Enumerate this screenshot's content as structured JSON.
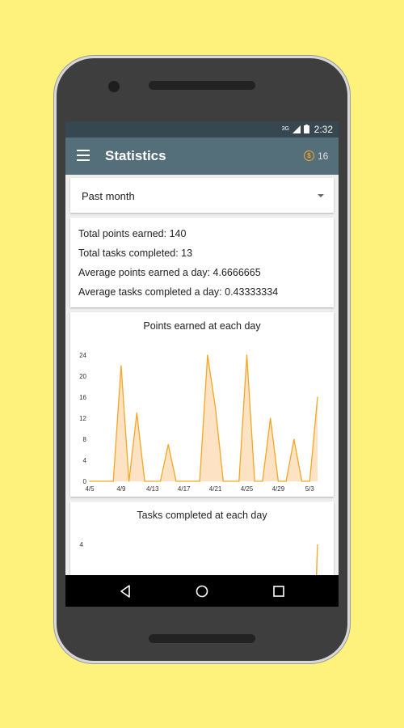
{
  "status_bar": {
    "network": "3G",
    "time": "2:32"
  },
  "toolbar": {
    "title": "Statistics",
    "coins": "16",
    "coin_symbol": "$"
  },
  "period_select": {
    "value": "Past month"
  },
  "summary": {
    "points": "Total points earned: 140",
    "tasks": "Total tasks completed: 13",
    "avg_points": "Average points earned a day: 4.6666665",
    "avg_tasks": "Average tasks completed a day: 0.43333334"
  },
  "colors": {
    "accent": "#f5a623",
    "fill": "#fde3c4",
    "toolbar": "#546e7a",
    "status_bar": "#37474f"
  },
  "chart_data": [
    {
      "type": "area",
      "title": "Points earned at each day",
      "x_tick_labels": [
        "4/5",
        "4/9",
        "4/13",
        "4/17",
        "4/21",
        "4/25",
        "4/29",
        "5/3"
      ],
      "y_ticks": [
        0,
        4,
        8,
        12,
        16,
        20,
        24
      ],
      "ylim": [
        0,
        24
      ],
      "x": [
        "4/5",
        "4/6",
        "4/7",
        "4/8",
        "4/9",
        "4/10",
        "4/11",
        "4/12",
        "4/13",
        "4/14",
        "4/15",
        "4/16",
        "4/17",
        "4/18",
        "4/19",
        "4/20",
        "4/21",
        "4/22",
        "4/23",
        "4/24",
        "4/25",
        "4/26",
        "4/27",
        "4/28",
        "4/29",
        "4/30",
        "5/1",
        "5/2",
        "5/3",
        "5/4"
      ],
      "values": [
        0,
        0,
        0,
        0,
        22,
        0,
        13,
        0,
        0,
        0,
        7,
        0,
        0,
        0,
        0,
        24,
        14,
        0,
        0,
        0,
        24,
        0,
        0,
        12,
        0,
        0,
        8,
        0,
        0,
        16
      ]
    },
    {
      "type": "area",
      "title": "Tasks completed at each day",
      "y_ticks": [
        4
      ],
      "values_visible": "partial"
    }
  ]
}
